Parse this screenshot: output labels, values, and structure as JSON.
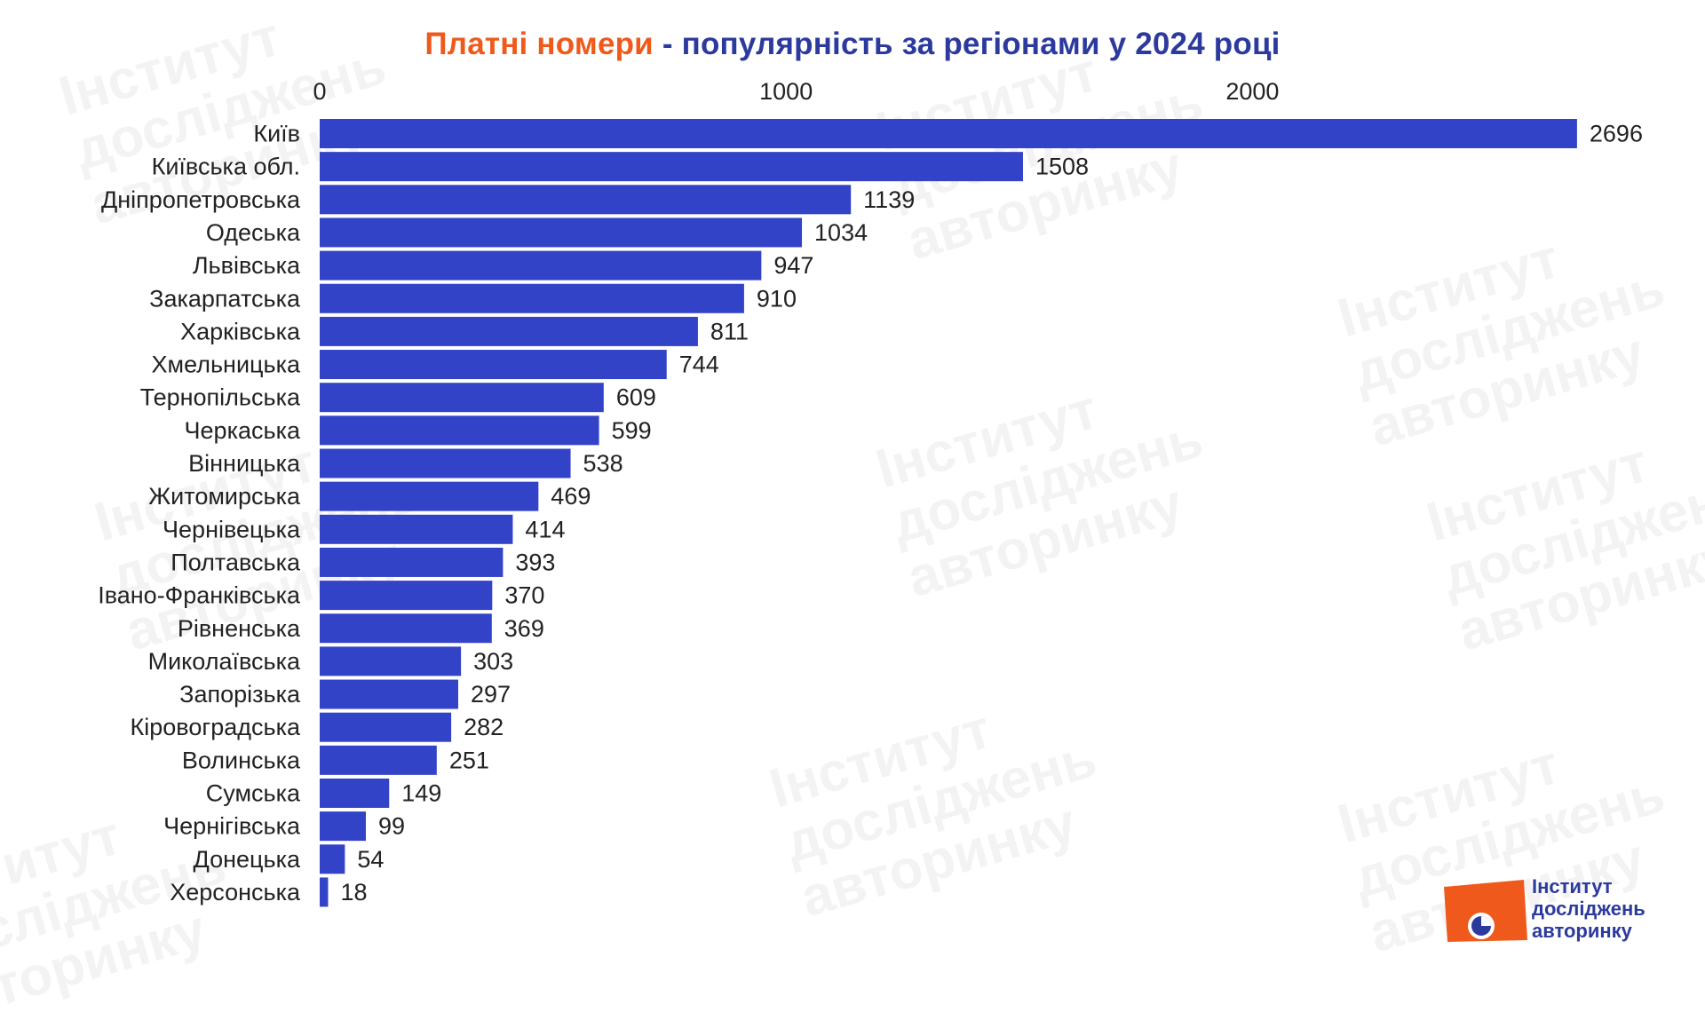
{
  "title": {
    "accent": "Платні номери",
    "rest": " - популярність за регіонами у 2024 році"
  },
  "colors": {
    "bar": "#3343c8",
    "title_accent": "#ef5a1c",
    "title_main": "#2c3a9e",
    "logo_orange": "#ef5a1c",
    "logo_blue": "#2c3a9e"
  },
  "chart_data": {
    "type": "bar",
    "orientation": "horizontal",
    "title": "Платні номери - популярність за регіонами у 2024 році",
    "categories": [
      "Київ",
      "Київська обл.",
      "Дніпропетровська",
      "Одеська",
      "Львівська",
      "Закарпатська",
      "Харківська",
      "Хмельницька",
      "Тернопільська",
      "Черкаська",
      "Вінницька",
      "Житомирська",
      "Чернівецька",
      "Полтавська",
      "Івано-Франківська",
      "Рівненська",
      "Миколаївська",
      "Запорізька",
      "Кіровоградська",
      "Волинська",
      "Сумська",
      "Чернігівська",
      "Донецька",
      "Херсонська"
    ],
    "values": [
      2696,
      1508,
      1139,
      1034,
      947,
      910,
      811,
      744,
      609,
      599,
      538,
      469,
      414,
      393,
      370,
      369,
      303,
      297,
      282,
      251,
      149,
      99,
      54,
      18
    ],
    "xticks": [
      0,
      1000,
      2000
    ],
    "xlim": [
      0,
      2700
    ],
    "xaxis_position": "top",
    "grid": false,
    "data_labels": true,
    "legend": "none"
  },
  "watermark": {
    "lines": [
      "Інститут",
      "досліджень",
      "авторинку"
    ]
  },
  "logo": {
    "line1": "Інститут",
    "line2": "досліджень",
    "line3": "авторинку",
    "icon": "pie-chart-icon"
  }
}
